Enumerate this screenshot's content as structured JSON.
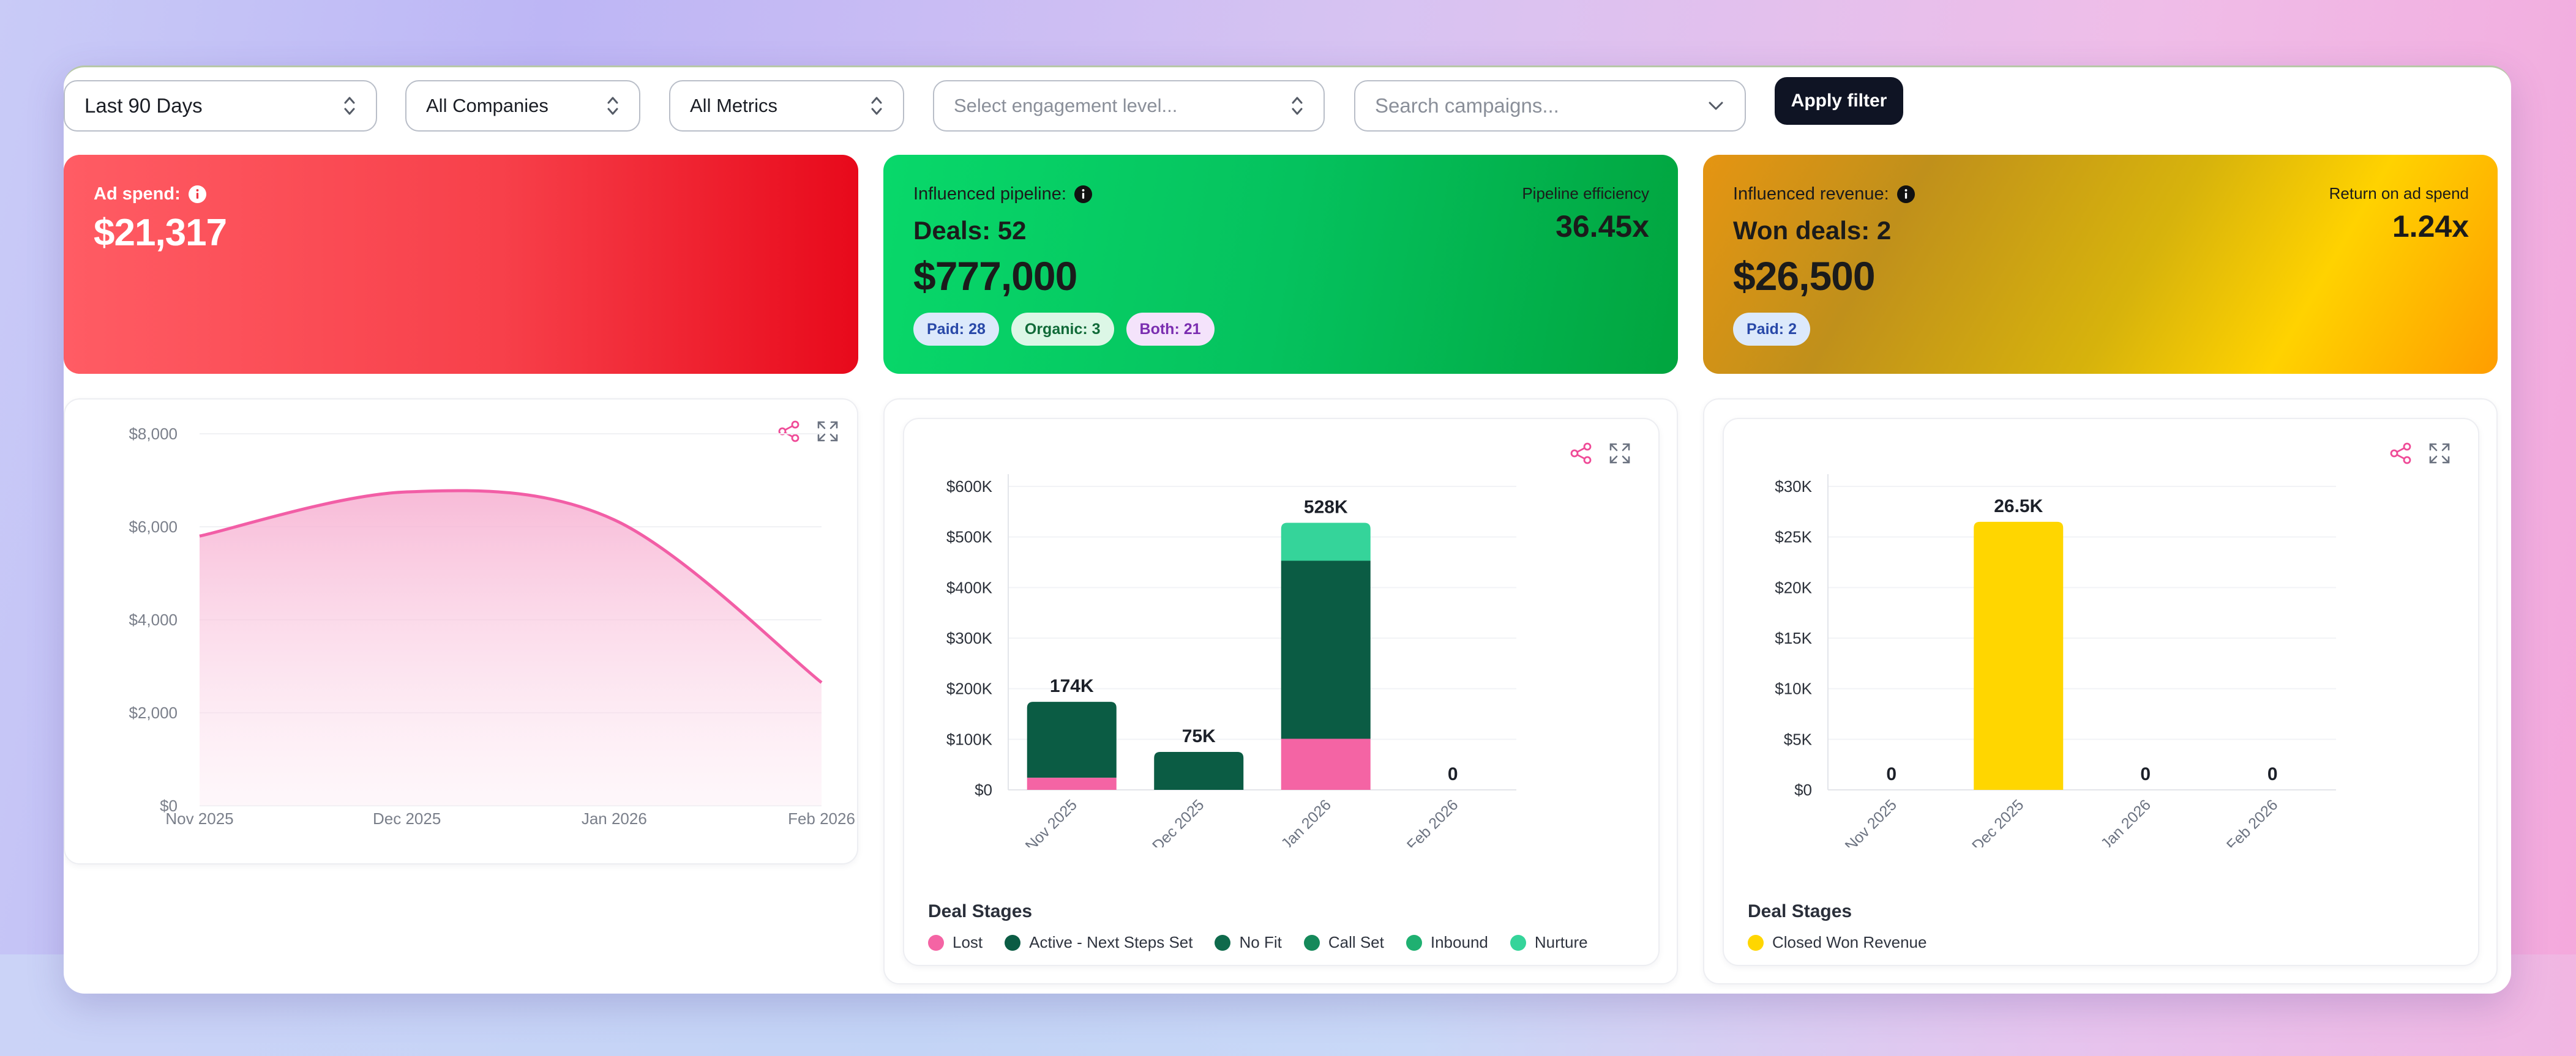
{
  "filters": {
    "date_range": "Last 90 Days",
    "companies": "All Companies",
    "metrics": "All Metrics",
    "engagement_placeholder": "Select engagement level...",
    "campaign_placeholder": "Search campaigns...",
    "apply_label": "Apply filter"
  },
  "kpis": {
    "ad_spend": {
      "label": "Ad spend:",
      "value": "$21,317"
    },
    "pipeline": {
      "label": "Influenced pipeline:",
      "deals": "Deals: 52",
      "value": "$777,000",
      "efficiency_label": "Pipeline efficiency",
      "efficiency_value": "36.45x",
      "chips": [
        "Paid: 28",
        "Organic: 3",
        "Both: 21"
      ]
    },
    "revenue": {
      "label": "Influenced revenue:",
      "won": "Won deals: 2",
      "value": "$26,500",
      "roas_label": "Return on ad spend",
      "roas_value": "1.24x",
      "chips": [
        "Paid: 2"
      ]
    }
  },
  "colors": {
    "lost": "#f464a4",
    "active": "#0b5c44",
    "no_fit": "#0f6a4c",
    "call_set": "#15895a",
    "inbound": "#1fb071",
    "nurture": "#35d49a",
    "closed_won": "#ffd600",
    "line": "#f25ea6"
  },
  "chart_data": [
    {
      "type": "area",
      "x": [
        "Nov 2025",
        "Dec 2025",
        "Jan 2026",
        "Feb 2026"
      ],
      "series": [
        {
          "values": [
            5800,
            6750,
            6150,
            2650
          ]
        }
      ],
      "y_ticks": [
        "$0",
        "$2,000",
        "$4,000",
        "$6,000",
        "$8,000"
      ],
      "ylim": [
        0,
        8000
      ]
    },
    {
      "type": "bar",
      "categories": [
        "Nov 2025",
        "Dec 2025",
        "Jan 2026",
        "Feb 2026"
      ],
      "series": [
        {
          "name": "Lost",
          "values": [
            24000,
            0,
            101000,
            0
          ]
        },
        {
          "name": "Active - Next Steps Set",
          "values": [
            150000,
            75000,
            352000,
            0
          ]
        },
        {
          "name": "No Fit",
          "values": [
            0,
            0,
            0,
            0
          ]
        },
        {
          "name": "Call Set",
          "values": [
            0,
            0,
            0,
            0
          ]
        },
        {
          "name": "Inbound",
          "values": [
            0,
            0,
            0,
            0
          ]
        },
        {
          "name": "Nurture",
          "values": [
            0,
            0,
            75000,
            0
          ]
        }
      ],
      "totals": [
        "174K",
        "75K",
        "528K",
        "0"
      ],
      "y_ticks": [
        "$0",
        "$100K",
        "$200K",
        "$300K",
        "$400K",
        "$500K",
        "$600K"
      ],
      "ylim": [
        0,
        600000
      ],
      "legend_title": "Deal Stages"
    },
    {
      "type": "bar",
      "categories": [
        "Nov 2025",
        "Dec 2025",
        "Jan 2026",
        "Feb 2026"
      ],
      "series": [
        {
          "name": "Closed Won Revenue",
          "values": [
            0,
            26500,
            0,
            0
          ]
        }
      ],
      "totals": [
        "0",
        "26.5K",
        "0",
        "0"
      ],
      "y_ticks": [
        "$0",
        "$5K",
        "$10K",
        "$15K",
        "$20K",
        "$25K",
        "$30K"
      ],
      "ylim": [
        0,
        30000
      ],
      "legend_title": "Deal Stages"
    }
  ]
}
